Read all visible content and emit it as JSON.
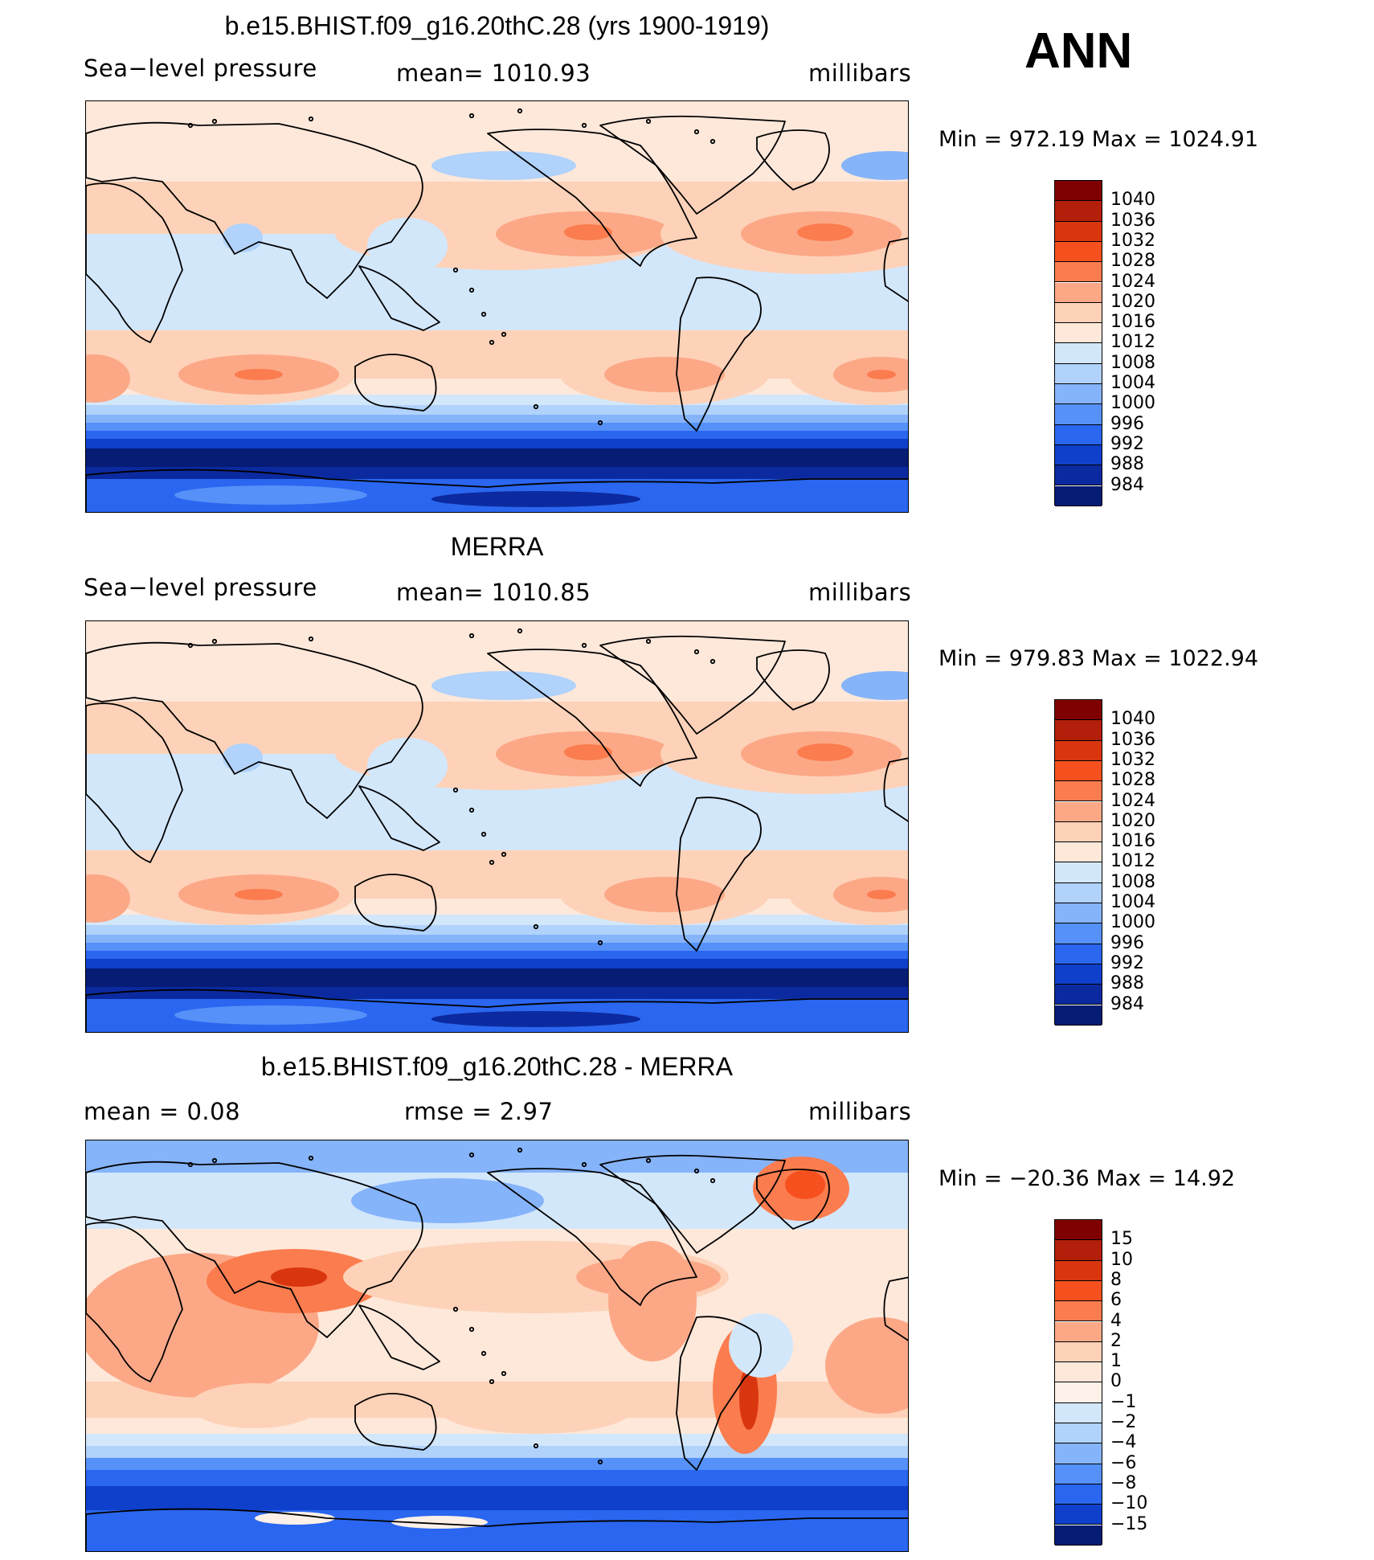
{
  "season": "ANN",
  "panels": [
    {
      "title": "b.e15.BHIST.f09_g16.20thC.28 (yrs 1900-1919)",
      "left_label": "Sea−level pressure",
      "center_label": "mean=  1010.93",
      "right_label": "millibars",
      "minmax": "Min  =  972.19  Max  =  1024.91",
      "colorbar_labels": [
        "1040",
        "1036",
        "1032",
        "1028",
        "1024",
        "1020",
        "1016",
        "1012",
        "1008",
        "1004",
        "1000",
        "996",
        "992",
        "988",
        "984"
      ],
      "colorbar_colors": [
        "#7f0000",
        "#b31f0a",
        "#d9360f",
        "#f6501e",
        "#fb7c4e",
        "#fca887",
        "#fdd2b8",
        "#fde8da",
        "#d3e7fb",
        "#b0d2fb",
        "#86b4fa",
        "#5591f8",
        "#2a66ef",
        "#0f40cc",
        "#0c2aa0",
        "#061c75"
      ]
    },
    {
      "title": "MERRA",
      "left_label": "Sea−level pressure",
      "center_label": "mean=  1010.85",
      "right_label": "millibars",
      "minmax": "Min  =  979.83  Max  =  1022.94",
      "colorbar_labels": [
        "1040",
        "1036",
        "1032",
        "1028",
        "1024",
        "1020",
        "1016",
        "1012",
        "1008",
        "1004",
        "1000",
        "996",
        "992",
        "988",
        "984"
      ],
      "colorbar_colors": [
        "#7f0000",
        "#b31f0a",
        "#d9360f",
        "#f6501e",
        "#fb7c4e",
        "#fca887",
        "#fdd2b8",
        "#fde8da",
        "#d3e7fb",
        "#b0d2fb",
        "#86b4fa",
        "#5591f8",
        "#2a66ef",
        "#0f40cc",
        "#0c2aa0",
        "#061c75"
      ]
    },
    {
      "title": "b.e15.BHIST.f09_g16.20thC.28 - MERRA",
      "left_label": "mean  =     0.08",
      "center_label": "rmse  =     2.97",
      "right_label": "millibars",
      "minmax": "Min  =  −20.36  Max  =    14.92",
      "colorbar_labels": [
        "15",
        "10",
        "8",
        "6",
        "4",
        "2",
        "1",
        "0",
        "−1",
        "−2",
        "−4",
        "−6",
        "−8",
        "−10",
        "−15"
      ],
      "colorbar_colors": [
        "#7f0000",
        "#b31f0a",
        "#d9360f",
        "#f6501e",
        "#fb7c4e",
        "#fca887",
        "#fdd2b8",
        "#fde8da",
        "#fdf0e8",
        "#d3e7fb",
        "#b0d2fb",
        "#86b4fa",
        "#5591f8",
        "#2a66ef",
        "#0f40cc",
        "#061c75"
      ]
    }
  ]
}
